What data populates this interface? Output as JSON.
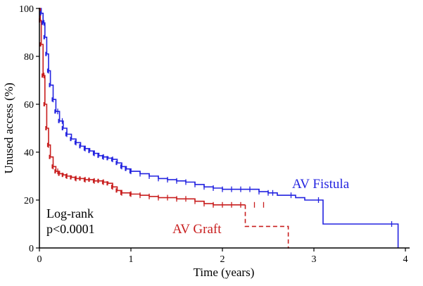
{
  "chart_data": {
    "type": "line",
    "step": true,
    "xlabel": "Time (years)",
    "ylabel": "Unused access (%)",
    "xlim": [
      0,
      4.2
    ],
    "ylim": [
      0,
      100
    ],
    "xticks": [
      "0",
      "1",
      "2",
      "3",
      "4"
    ],
    "yticks": [
      "0",
      "20",
      "40",
      "60",
      "80",
      "100"
    ],
    "grid": false,
    "legend": "inline labels",
    "annotations": [
      "Log-rank",
      "p<0.0001"
    ],
    "series": [
      {
        "name": "AV Fistula",
        "color": "#2323e0",
        "line_style": "solid",
        "x": [
          0,
          0.02,
          0.04,
          0.06,
          0.08,
          0.1,
          0.12,
          0.15,
          0.18,
          0.22,
          0.26,
          0.3,
          0.35,
          0.4,
          0.45,
          0.5,
          0.55,
          0.6,
          0.65,
          0.7,
          0.75,
          0.8,
          0.85,
          0.9,
          0.95,
          1.0,
          1.1,
          1.2,
          1.3,
          1.4,
          1.5,
          1.6,
          1.7,
          1.8,
          1.9,
          2.0,
          2.1,
          2.2,
          2.3,
          2.4,
          2.5,
          2.6,
          2.7,
          2.8,
          2.9,
          3.0,
          3.08,
          3.1,
          3.5,
          3.9,
          3.92
        ],
        "y": [
          100,
          98,
          94,
          88,
          81,
          74,
          68,
          62,
          57,
          53,
          50,
          47.5,
          45.5,
          44,
          42.5,
          41.5,
          40.5,
          39.5,
          38.5,
          38,
          37.5,
          37,
          35.5,
          34,
          33,
          32,
          31,
          30,
          29,
          28.5,
          28,
          27.5,
          26.5,
          25.5,
          25,
          24.5,
          24.5,
          24.5,
          24.5,
          23.5,
          23,
          22,
          22,
          21,
          20,
          20,
          20,
          10,
          10,
          10,
          0
        ]
      },
      {
        "name": "AV Graft",
        "color": "#c81e1e",
        "line_style": "solid",
        "x": [
          0,
          0.01,
          0.02,
          0.04,
          0.06,
          0.08,
          0.1,
          0.12,
          0.15,
          0.18,
          0.22,
          0.26,
          0.3,
          0.35,
          0.4,
          0.45,
          0.5,
          0.55,
          0.6,
          0.65,
          0.7,
          0.75,
          0.8,
          0.85,
          0.9,
          1.0,
          1.1,
          1.2,
          1.3,
          1.4,
          1.5,
          1.6,
          1.7,
          1.8,
          1.9,
          2.0,
          2.1,
          2.2,
          2.25
        ],
        "y": [
          100,
          95,
          85,
          72,
          60,
          50,
          43,
          38,
          34,
          32,
          31,
          30.5,
          30,
          29.5,
          29,
          29,
          28.5,
          28.5,
          28,
          28,
          27.5,
          27,
          25.5,
          24,
          23,
          22.5,
          22,
          21.5,
          21,
          21,
          20.5,
          20.5,
          19.5,
          18.5,
          18,
          18,
          18,
          18,
          18
        ]
      },
      {
        "name": "",
        "color": "#c81e1e",
        "line_style": "dashed",
        "x": [
          2.25,
          2.25,
          2.72,
          2.72,
          2.73
        ],
        "y": [
          18,
          9,
          9,
          0,
          0
        ]
      }
    ],
    "censor_marks": [
      {
        "series": "AV Fistula",
        "x": [
          0.05,
          0.1,
          0.15,
          0.2,
          0.25,
          0.3,
          0.4,
          0.5,
          0.6,
          0.7,
          0.8,
          0.9,
          1.0,
          1.1,
          1.2,
          1.3,
          1.4,
          1.5,
          1.6,
          1.7,
          1.8,
          1.9,
          2.0,
          2.1,
          2.2,
          2.3,
          2.4,
          2.5,
          2.55,
          2.75,
          3.05,
          3.85
        ]
      },
      {
        "series": "AV Graft",
        "x": [
          0.05,
          0.1,
          0.15,
          0.2,
          0.3,
          0.4,
          0.5,
          0.6,
          0.7,
          0.8,
          0.9,
          1.0,
          1.1,
          1.2,
          1.3,
          1.4,
          1.5,
          1.6,
          1.7,
          1.8,
          1.9,
          2.0,
          2.1,
          2.2,
          2.35,
          2.45
        ]
      }
    ]
  }
}
